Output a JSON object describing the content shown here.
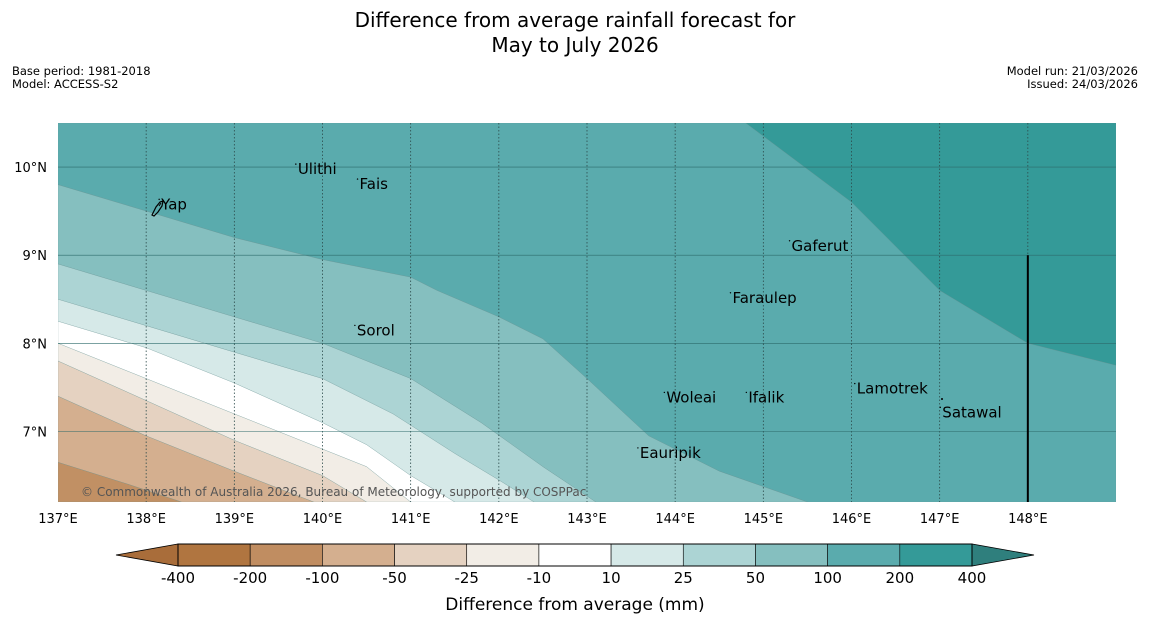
{
  "title": {
    "line1": "Difference from average rainfall forecast for",
    "line2": "May to July 2026"
  },
  "meta": {
    "base_period": "Base period: 1981-2018",
    "model": "Model: ACCESS-S2",
    "model_run": "Model run: 21/03/2026",
    "issued": "Issued: 24/03/2026"
  },
  "map": {
    "lon_range": [
      137,
      149
    ],
    "lat_range": [
      6.2,
      10.5
    ],
    "lon_ticks": [
      {
        "value": 137,
        "label": "137°E"
      },
      {
        "value": 138,
        "label": "138°E"
      },
      {
        "value": 139,
        "label": "139°E"
      },
      {
        "value": 140,
        "label": "140°E"
      },
      {
        "value": 141,
        "label": "141°E"
      },
      {
        "value": 142,
        "label": "142°E"
      },
      {
        "value": 143,
        "label": "143°E"
      },
      {
        "value": 144,
        "label": "144°E"
      },
      {
        "value": 145,
        "label": "145°E"
      },
      {
        "value": 146,
        "label": "146°E"
      },
      {
        "value": 147,
        "label": "147°E"
      },
      {
        "value": 148,
        "label": "148°E"
      }
    ],
    "lat_ticks": [
      {
        "value": 10,
        "label": "10°N"
      },
      {
        "value": 9,
        "label": "9°N"
      },
      {
        "value": 8,
        "label": "8°N"
      },
      {
        "value": 7,
        "label": "7°N"
      }
    ],
    "places": [
      {
        "name": "Yap",
        "lon": 138.17,
        "lat": 9.52
      },
      {
        "name": "Ulithi",
        "lon": 139.72,
        "lat": 9.92
      },
      {
        "name": "Fais",
        "lon": 140.42,
        "lat": 9.75
      },
      {
        "name": "Gaferut",
        "lon": 145.32,
        "lat": 9.05
      },
      {
        "name": "Faraulep",
        "lon": 144.65,
        "lat": 8.46
      },
      {
        "name": "Sorol",
        "lon": 140.39,
        "lat": 8.09
      },
      {
        "name": "Woleai",
        "lon": 143.9,
        "lat": 7.33
      },
      {
        "name": "Ifalik",
        "lon": 144.83,
        "lat": 7.33
      },
      {
        "name": "Lamotrek",
        "lon": 146.06,
        "lat": 7.43
      },
      {
        "name": "Satawal",
        "lon": 147.03,
        "lat": 7.16
      },
      {
        "name": "Eauripik",
        "lon": 143.6,
        "lat": 6.7
      }
    ],
    "meridian_line_lon": 148,
    "meridian_line_lat_top": 9.0,
    "credit": "© Commonwealth of Australia 2026, Bureau of Meteorology, supported by COSPPac"
  },
  "contours": {
    "bands": [
      {
        "level": "400",
        "color": "#349a98",
        "upper": [
          [
            144.8,
            10.5
          ],
          [
            149,
            10.5
          ]
        ],
        "lower": [
          [
            144.8,
            10.5
          ],
          [
            146,
            9.6
          ],
          [
            147,
            8.6
          ],
          [
            148,
            8.0
          ],
          [
            149,
            7.75
          ]
        ]
      },
      {
        "level": "200",
        "color": "#5aabad",
        "upper": [
          [
            137,
            10.5
          ],
          [
            144.8,
            10.5
          ],
          [
            146,
            9.6
          ],
          [
            147,
            8.6
          ],
          [
            148,
            8.0
          ],
          [
            149,
            7.75
          ]
        ],
        "lower": [
          [
            137,
            9.8
          ],
          [
            138,
            9.5
          ],
          [
            139,
            9.2
          ],
          [
            140,
            8.95
          ],
          [
            141,
            8.75
          ],
          [
            141.3,
            8.6
          ],
          [
            142,
            8.3
          ],
          [
            142.5,
            8.05
          ],
          [
            143,
            7.6
          ],
          [
            143.7,
            6.95
          ],
          [
            144.5,
            6.55
          ],
          [
            145.5,
            6.2
          ],
          [
            149,
            6.2
          ]
        ]
      },
      {
        "level": "100",
        "color": "#85bfbf",
        "upper": [
          [
            137,
            9.8
          ],
          [
            138,
            9.5
          ],
          [
            139,
            9.2
          ],
          [
            140,
            8.95
          ],
          [
            141,
            8.75
          ],
          [
            141.3,
            8.6
          ],
          [
            142,
            8.3
          ],
          [
            142.5,
            8.05
          ],
          [
            143,
            7.6
          ],
          [
            143.7,
            6.95
          ],
          [
            144.5,
            6.55
          ],
          [
            145.5,
            6.2
          ]
        ],
        "lower": [
          [
            137,
            8.9
          ],
          [
            138,
            8.6
          ],
          [
            139,
            8.3
          ],
          [
            140,
            8.0
          ],
          [
            141,
            7.6
          ],
          [
            141.8,
            7.1
          ],
          [
            142.5,
            6.6
          ],
          [
            143.1,
            6.2
          ]
        ]
      },
      {
        "level": "50",
        "color": "#acd4d4",
        "upper": [
          [
            137,
            8.9
          ],
          [
            138,
            8.6
          ],
          [
            139,
            8.3
          ],
          [
            140,
            8.0
          ],
          [
            141,
            7.6
          ],
          [
            141.8,
            7.1
          ],
          [
            142.5,
            6.6
          ],
          [
            143.1,
            6.2
          ]
        ],
        "lower": [
          [
            137,
            8.5
          ],
          [
            138,
            8.2
          ],
          [
            139,
            7.9
          ],
          [
            140,
            7.6
          ],
          [
            140.8,
            7.2
          ],
          [
            141.5,
            6.75
          ],
          [
            142,
            6.45
          ],
          [
            142.4,
            6.2
          ]
        ]
      },
      {
        "level": "25",
        "color": "#d6e9e8",
        "upper": [
          [
            137,
            8.5
          ],
          [
            138,
            8.2
          ],
          [
            139,
            7.9
          ],
          [
            140,
            7.6
          ],
          [
            140.8,
            7.2
          ],
          [
            141.5,
            6.75
          ],
          [
            142,
            6.45
          ],
          [
            142.4,
            6.2
          ]
        ],
        "lower": [
          [
            137,
            8.25
          ],
          [
            138,
            7.95
          ],
          [
            139,
            7.55
          ],
          [
            140,
            7.1
          ],
          [
            140.5,
            6.85
          ],
          [
            141,
            6.5
          ],
          [
            141.5,
            6.2
          ]
        ]
      },
      {
        "level": "10",
        "color": "#ffffff",
        "upper": [
          [
            137,
            8.25
          ],
          [
            138,
            7.95
          ],
          [
            139,
            7.55
          ],
          [
            140,
            7.1
          ],
          [
            140.5,
            6.85
          ],
          [
            141,
            6.5
          ],
          [
            141.5,
            6.2
          ]
        ],
        "lower": [
          [
            137,
            8.0
          ],
          [
            138,
            7.6
          ],
          [
            139,
            7.2
          ],
          [
            140,
            6.8
          ],
          [
            140.5,
            6.6
          ],
          [
            141,
            6.2
          ]
        ]
      },
      {
        "level": "-25",
        "color": "#f2ede6",
        "upper": [
          [
            137,
            8.0
          ],
          [
            138,
            7.6
          ],
          [
            139,
            7.2
          ],
          [
            140,
            6.8
          ],
          [
            140.5,
            6.6
          ],
          [
            141,
            6.2
          ]
        ],
        "lower": [
          [
            137,
            7.8
          ],
          [
            138,
            7.35
          ],
          [
            139,
            6.9
          ],
          [
            140,
            6.5
          ],
          [
            140.5,
            6.2
          ]
        ]
      },
      {
        "level": "-50",
        "color": "#e5d2c1",
        "upper": [
          [
            137,
            7.8
          ],
          [
            138,
            7.35
          ],
          [
            139,
            6.9
          ],
          [
            140,
            6.5
          ],
          [
            140.5,
            6.2
          ]
        ],
        "lower": [
          [
            137,
            7.4
          ],
          [
            138,
            6.95
          ],
          [
            139,
            6.55
          ],
          [
            139.9,
            6.2
          ]
        ]
      },
      {
        "level": "-100",
        "color": "#d4af8f",
        "upper": [
          [
            137,
            7.4
          ],
          [
            138,
            6.95
          ],
          [
            139,
            6.55
          ],
          [
            139.9,
            6.2
          ]
        ],
        "lower": [
          [
            137,
            6.65
          ],
          [
            137.8,
            6.4
          ],
          [
            138.4,
            6.2
          ]
        ]
      },
      {
        "level": "-200",
        "color": "#c19064",
        "upper": [
          [
            137,
            6.65
          ],
          [
            137.8,
            6.4
          ],
          [
            138.4,
            6.2
          ]
        ],
        "lower": [
          [
            137,
            6.2
          ]
        ]
      }
    ]
  },
  "colorbar": {
    "title": "Difference from average (mm)",
    "colors": [
      "#a96d3a",
      "#b07540",
      "#c08d61",
      "#d4af8f",
      "#e5d2c1",
      "#f2ede6",
      "#ffffff",
      "#d6e9e8",
      "#acd4d4",
      "#85bfbf",
      "#5aabad",
      "#349a98",
      "#2f7f7d"
    ],
    "ticks": [
      "-400",
      "-200",
      "-100",
      "-50",
      "-25",
      "-10",
      "10",
      "25",
      "50",
      "100",
      "200",
      "400"
    ]
  }
}
